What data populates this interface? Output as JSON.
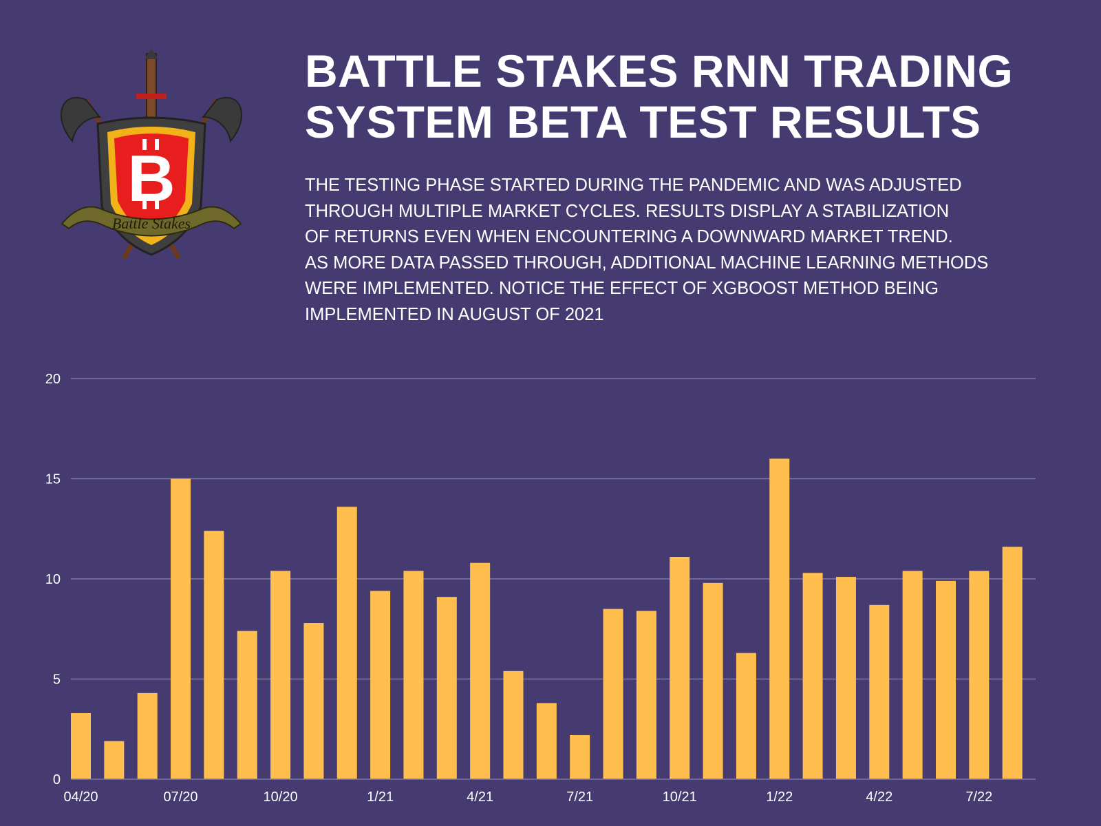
{
  "logo": {
    "banner_text": "Battle Stakes",
    "symbol": "bitcoin-icon",
    "colors": {
      "shield": "#e81d1d",
      "border": "#f2b21a",
      "banner": "#6f6a2c"
    }
  },
  "header": {
    "title_lines": [
      "BATTLE STAKES RNN TRADING",
      "SYSTEM BETA TEST RESULTS"
    ],
    "description_lines": [
      "THE TESTING PHASE STARTED DURING THE PANDEMIC AND WAS ADJUSTED",
      "THROUGH MULTIPLE MARKET CYCLES. RESULTS DISPLAY A STABILIZATION",
      "OF RETURNS EVEN WHEN ENCOUNTERING A DOWNWARD MARKET TREND.",
      "AS MORE DATA PASSED THROUGH, ADDITIONAL MACHINE LEARNING METHODS",
      "WERE IMPLEMENTED. NOTICE THE EFFECT OF XGBOOST METHOD BEING",
      "IMPLEMENTED IN AUGUST OF 2021"
    ]
  },
  "colors": {
    "background": "#453b70",
    "bar": "#ffbe4d",
    "grid": "#7d76a6"
  },
  "chart_data": {
    "type": "bar",
    "title": "",
    "xlabel": "",
    "ylabel": "",
    "ylim": [
      0,
      20
    ],
    "yticks": [
      0,
      5,
      10,
      15,
      20
    ],
    "grid": true,
    "categories": [
      "04/20",
      "05/20",
      "06/20",
      "07/20",
      "08/20",
      "09/20",
      "10/20",
      "11/20",
      "12/20",
      "1/21",
      "2/21",
      "3/21",
      "4/21",
      "5/21",
      "6/21",
      "7/21",
      "8/21",
      "9/21",
      "10/21",
      "11/21",
      "12/21",
      "1/22",
      "2/22",
      "3/22",
      "4/22",
      "5/22",
      "6/22",
      "7/22",
      "8/22"
    ],
    "tick_labels": [
      {
        "index": 0,
        "label": "04/20"
      },
      {
        "index": 3,
        "label": "07/20"
      },
      {
        "index": 6,
        "label": "10/20"
      },
      {
        "index": 9,
        "label": "1/21"
      },
      {
        "index": 12,
        "label": "4/21"
      },
      {
        "index": 15,
        "label": "7/21"
      },
      {
        "index": 18,
        "label": "10/21"
      },
      {
        "index": 21,
        "label": "1/22"
      },
      {
        "index": 24,
        "label": "4/22"
      },
      {
        "index": 27,
        "label": "7/22"
      }
    ],
    "values": [
      3.3,
      1.9,
      4.3,
      15.0,
      12.4,
      7.4,
      10.4,
      7.8,
      13.6,
      9.4,
      10.4,
      9.1,
      10.8,
      5.4,
      3.8,
      2.2,
      8.5,
      8.4,
      11.1,
      9.8,
      6.3,
      16.0,
      10.3,
      10.1,
      8.7,
      10.4,
      9.9,
      10.4,
      11.6
    ]
  }
}
